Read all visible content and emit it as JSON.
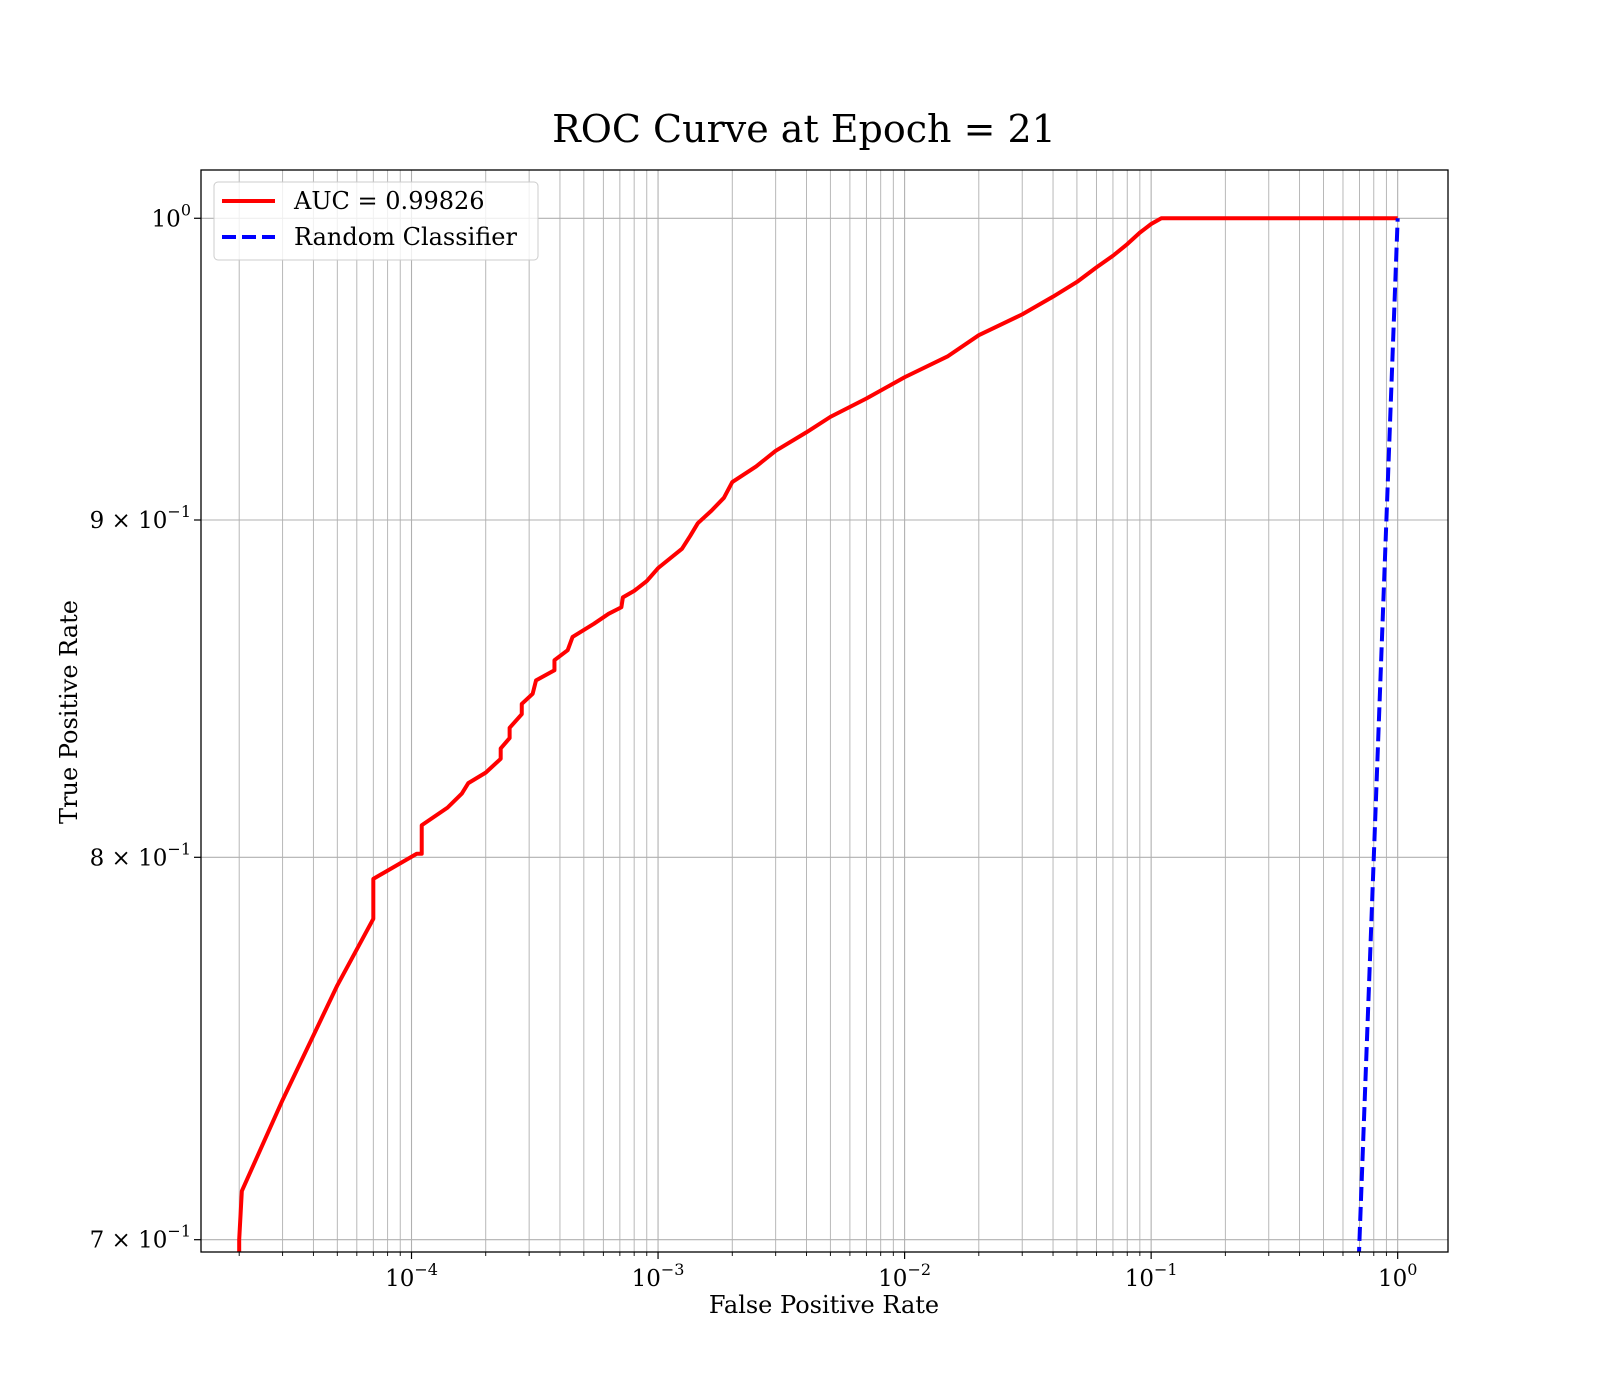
{
  "chart_data": {
    "type": "line",
    "title": "ROC Curve at Epoch = 21",
    "xlabel": "False Positive Rate",
    "ylabel": "True Positive Rate",
    "x_scale": "log",
    "y_scale": "log",
    "xlim": [
      1.4e-05,
      1.6
    ],
    "ylim": [
      0.697,
      1.017
    ],
    "grid": "both-major-and-minor-x",
    "legend_position": "top-left",
    "x_ticks": [
      {
        "value": 0.0001,
        "base": "10",
        "exp": "−4"
      },
      {
        "value": 0.001,
        "base": "10",
        "exp": "−3"
      },
      {
        "value": 0.01,
        "base": "10",
        "exp": "−2"
      },
      {
        "value": 0.1,
        "base": "10",
        "exp": "−1"
      },
      {
        "value": 1,
        "base": "10",
        "exp": "0"
      }
    ],
    "y_ticks": [
      {
        "value": 0.7,
        "base": "7 × 10",
        "exp": "−1"
      },
      {
        "value": 0.8,
        "base": "8 × 10",
        "exp": "−1"
      },
      {
        "value": 0.9,
        "base": "9 × 10",
        "exp": "−1"
      },
      {
        "value": 1.0,
        "base": "10",
        "exp": "0"
      }
    ],
    "series": [
      {
        "name": "AUC = 0.99826",
        "color": "#ff0000",
        "style": "solid",
        "points": [
          [
            2e-05,
            0.695
          ],
          [
            2e-05,
            0.7
          ],
          [
            2.05e-05,
            0.712
          ],
          [
            3e-05,
            0.735
          ],
          [
            5e-05,
            0.765
          ],
          [
            7e-05,
            0.783
          ],
          [
            7e-05,
            0.794
          ],
          [
            0.000105,
            0.801
          ],
          [
            0.00011,
            0.801
          ],
          [
            0.00011,
            0.809
          ],
          [
            0.00014,
            0.814
          ],
          [
            0.00016,
            0.818
          ],
          [
            0.00017,
            0.821
          ],
          [
            0.0002,
            0.824
          ],
          [
            0.00023,
            0.828
          ],
          [
            0.00023,
            0.831
          ],
          [
            0.00025,
            0.834
          ],
          [
            0.00025,
            0.837
          ],
          [
            0.00028,
            0.841
          ],
          [
            0.00028,
            0.844
          ],
          [
            0.00031,
            0.847
          ],
          [
            0.00032,
            0.851
          ],
          [
            0.00038,
            0.854
          ],
          [
            0.00038,
            0.857
          ],
          [
            0.00043,
            0.86
          ],
          [
            0.00045,
            0.864
          ],
          [
            0.00055,
            0.868
          ],
          [
            0.00063,
            0.871
          ],
          [
            0.00071,
            0.873
          ],
          [
            0.00072,
            0.876
          ],
          [
            0.0008,
            0.878
          ],
          [
            0.0009,
            0.881
          ],
          [
            0.001,
            0.885
          ],
          [
            0.00125,
            0.891
          ],
          [
            0.00135,
            0.895
          ],
          [
            0.00145,
            0.899
          ],
          [
            0.00165,
            0.903
          ],
          [
            0.00185,
            0.907
          ],
          [
            0.002,
            0.912
          ],
          [
            0.0025,
            0.917
          ],
          [
            0.003,
            0.922
          ],
          [
            0.004,
            0.928
          ],
          [
            0.005,
            0.933
          ],
          [
            0.007,
            0.939
          ],
          [
            0.01,
            0.946
          ],
          [
            0.015,
            0.953
          ],
          [
            0.02,
            0.96
          ],
          [
            0.03,
            0.967
          ],
          [
            0.04,
            0.973
          ],
          [
            0.05,
            0.978
          ],
          [
            0.06,
            0.983
          ],
          [
            0.07,
            0.987
          ],
          [
            0.08,
            0.991
          ],
          [
            0.09,
            0.995
          ],
          [
            0.1,
            0.998
          ],
          [
            0.11,
            1.0
          ],
          [
            0.2,
            1.0
          ],
          [
            0.5,
            1.0
          ],
          [
            1.0,
            1.0
          ]
        ]
      },
      {
        "name": "Random Classifier",
        "color": "#0000ff",
        "style": "dashed",
        "points": [
          [
            0.69,
            0.69
          ],
          [
            1.0,
            1.0
          ]
        ]
      }
    ]
  }
}
